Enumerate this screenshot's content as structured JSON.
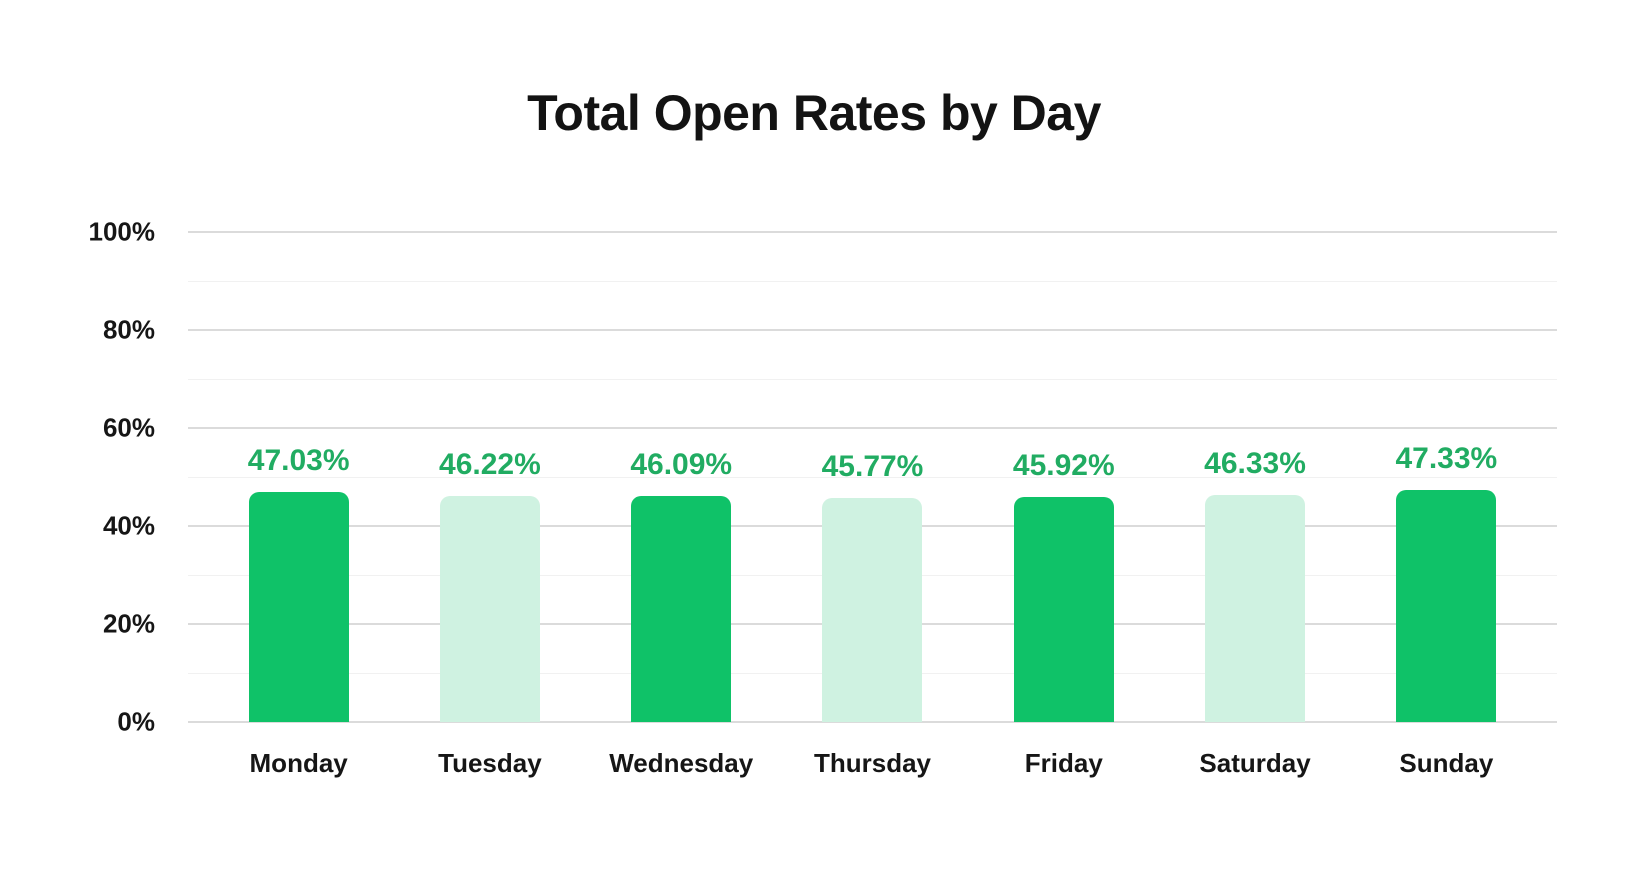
{
  "chart_data": {
    "type": "bar",
    "title": "Total Open Rates by Day",
    "xlabel": "",
    "ylabel": "",
    "categories": [
      "Monday",
      "Tuesday",
      "Wednesday",
      "Thursday",
      "Friday",
      "Saturday",
      "Sunday"
    ],
    "values": [
      47.03,
      46.22,
      46.09,
      45.77,
      45.92,
      46.33,
      47.33
    ],
    "value_labels": [
      "47.03%",
      "46.22%",
      "46.09%",
      "45.77%",
      "45.92%",
      "46.33%",
      "47.33%"
    ],
    "bar_colors": [
      "#0FC268",
      "#CFF2E1",
      "#0FC268",
      "#CFF2E1",
      "#0FC268",
      "#CFF2E1",
      "#0FC268"
    ],
    "ylim": [
      0,
      100
    ],
    "grid": "horizontal",
    "legend": "none",
    "y_ticks": [
      {
        "value": 100,
        "label": "100%",
        "major": true
      },
      {
        "value": 90,
        "label": "",
        "major": false
      },
      {
        "value": 80,
        "label": "80%",
        "major": true
      },
      {
        "value": 70,
        "label": "",
        "major": false
      },
      {
        "value": 60,
        "label": "60%",
        "major": true
      },
      {
        "value": 50,
        "label": "",
        "major": false
      },
      {
        "value": 40,
        "label": "40%",
        "major": true
      },
      {
        "value": 30,
        "label": "",
        "major": false
      },
      {
        "value": 20,
        "label": "20%",
        "major": true
      },
      {
        "value": 10,
        "label": "",
        "major": false
      },
      {
        "value": 0,
        "label": "0%",
        "major": true
      }
    ]
  },
  "colors": {
    "background": "#FFFFFF",
    "bar_dark": "#0FC268",
    "bar_light": "#CFF2E1",
    "value_label": "#21AC62",
    "grid_major": "#DBDBDB",
    "grid_minor": "#F1F1F1",
    "text": "#141414"
  }
}
